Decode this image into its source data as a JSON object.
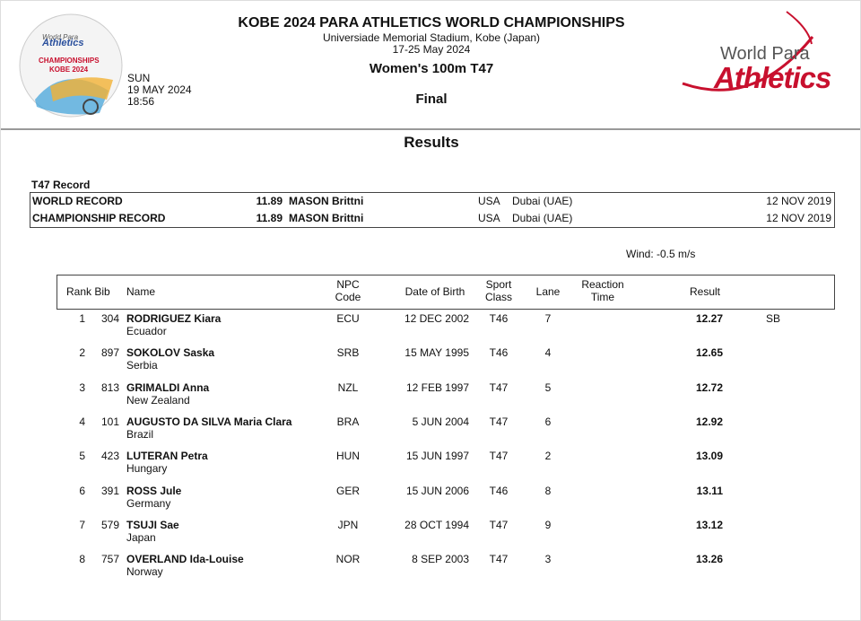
{
  "header": {
    "title": "KOBE 2024 PARA ATHLETICS WORLD CHAMPIONSHIPS",
    "venue": "Universiade Memorial Stadium, Kobe (Japan)",
    "dates": "17-25 May 2024",
    "event": "Women's 100m T47",
    "round": "Final",
    "day": "SUN",
    "date": "19 MAY 2024",
    "time": "18:56",
    "left_logo": {
      "line1": "World Para",
      "line2": "Athletics",
      "line3": "CHAMPIONSHIPS",
      "line4": "KOBE 2024"
    },
    "right_logo": {
      "line1": "World Para",
      "line2": "Athletics"
    }
  },
  "section": "Results",
  "records": {
    "title": "T47 Record",
    "rows": [
      [
        "WORLD RECORD",
        11.89,
        "MASON Brittni",
        "USA",
        "Dubai (UAE)",
        "12 NOV 2019"
      ],
      [
        "CHAMPIONSHIP RECORD",
        11.89,
        "MASON Brittni",
        "USA",
        "Dubai (UAE)",
        "12 NOV 2019"
      ]
    ]
  },
  "wind": "Wind: -0.5 m/s",
  "table": {
    "columns": [
      "Rank",
      "Bib",
      "Name",
      "NPC Code",
      "Date of Birth",
      "Sport Class",
      "Lane",
      "Reaction Time",
      "Result"
    ],
    "rows": [
      {
        "rank": 1,
        "bib": 304,
        "name": "RODRIGUEZ Kiara",
        "country": "Ecuador",
        "npc": "ECU",
        "dob": "12 DEC 2002",
        "class": "T46",
        "lane": 7,
        "result": 12.27,
        "note": "SB"
      },
      {
        "rank": 2,
        "bib": 897,
        "name": "SOKOLOV Saska",
        "country": "Serbia",
        "npc": "SRB",
        "dob": "15 MAY 1995",
        "class": "T46",
        "lane": 4,
        "result": 12.65
      },
      {
        "rank": 3,
        "bib": 813,
        "name": "GRIMALDI Anna",
        "country": "New Zealand",
        "npc": "NZL",
        "dob": "12 FEB 1997",
        "class": "T47",
        "lane": 5,
        "result": 12.72
      },
      {
        "rank": 4,
        "bib": 101,
        "name": "AUGUSTO DA SILVA Maria Clara",
        "country": "Brazil",
        "npc": "BRA",
        "dob": "5 JUN 2004",
        "class": "T47",
        "lane": 6,
        "result": 12.92
      },
      {
        "rank": 5,
        "bib": 423,
        "name": "LUTERAN Petra",
        "country": "Hungary",
        "npc": "HUN",
        "dob": "15 JUN 1997",
        "class": "T47",
        "lane": 2,
        "result": 13.09
      },
      {
        "rank": 6,
        "bib": 391,
        "name": "ROSS Jule",
        "country": "Germany",
        "npc": "GER",
        "dob": "15 JUN 2006",
        "class": "T46",
        "lane": 8,
        "result": 13.11
      },
      {
        "rank": 7,
        "bib": 579,
        "name": "TSUJI Sae",
        "country": "Japan",
        "npc": "JPN",
        "dob": "28 OCT 1994",
        "class": "T47",
        "lane": 9,
        "result": 13.12
      },
      {
        "rank": 8,
        "bib": 757,
        "name": "OVERLAND Ida-Louise",
        "country": "Norway",
        "npc": "NOR",
        "dob": "8 SEP 2003",
        "class": "T47",
        "lane": 3,
        "result": 13.26
      }
    ]
  }
}
